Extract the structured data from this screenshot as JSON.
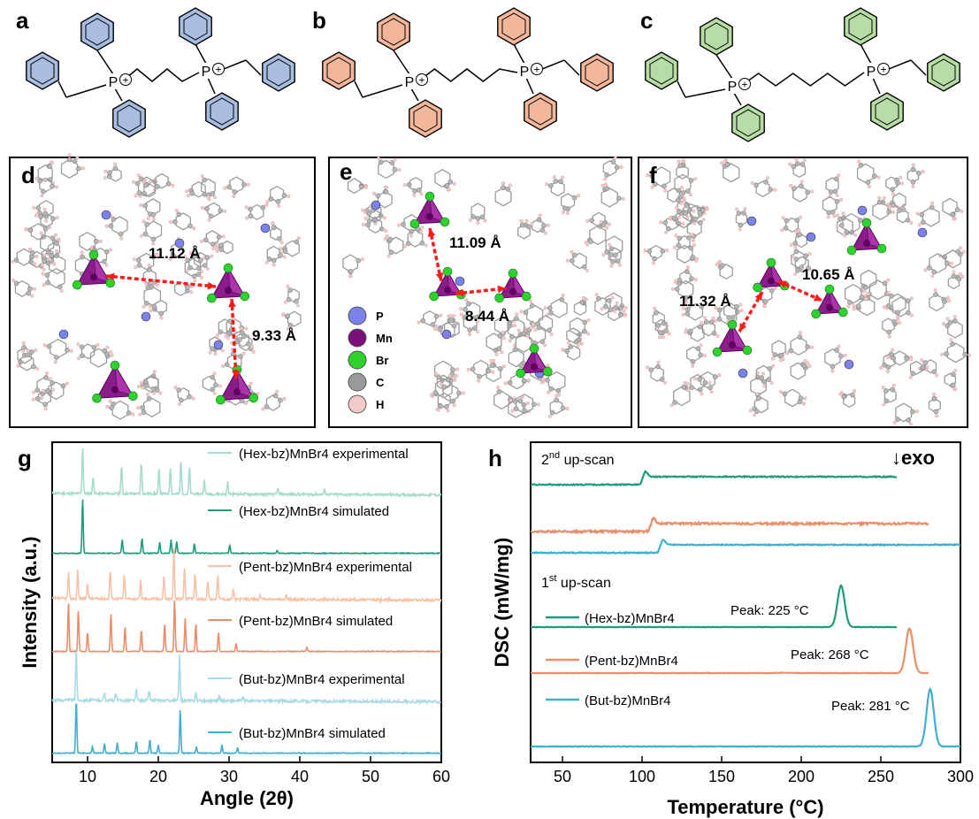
{
  "panels": {
    "a": "a",
    "b": "b",
    "c": "c",
    "d": "d",
    "e": "e",
    "f": "f",
    "g": "g",
    "h": "h"
  },
  "molecule_colors": {
    "a": "#a9bde0",
    "b": "#f2b79a",
    "c": "#b7dca6"
  },
  "phosphonium_label": "P",
  "plus_sign": "+",
  "crystal": {
    "d": {
      "distances": [
        "11.12 Å",
        "9.33 Å"
      ]
    },
    "e": {
      "distances": [
        "11.09 Å",
        "8.44 Å"
      ]
    },
    "f": {
      "distances": [
        "10.65 Å",
        "11.32 Å"
      ]
    },
    "legend": [
      {
        "label": "P",
        "color": "#7b82e8"
      },
      {
        "label": "Mn",
        "color": "#7d0f7b"
      },
      {
        "label": "Br",
        "color": "#2ed12e"
      },
      {
        "label": "C",
        "color": "#9a9a9a"
      },
      {
        "label": "H",
        "color": "#f3c9c9"
      }
    ]
  },
  "chart_data": [
    {
      "panel": "g",
      "type": "line",
      "xlabel": "Angle (2θ)",
      "ylabel": "Intensity (a.u.)",
      "xlim": [
        5,
        60
      ],
      "xticks": [
        10,
        20,
        30,
        40,
        50,
        60
      ],
      "series": [
        {
          "name": "(Hex-bz)MnBr4 experimental",
          "color": "#a6dcc9",
          "peaks": [
            [
              9.3,
              0.95
            ],
            [
              10.8,
              0.35
            ],
            [
              14.8,
              0.55
            ],
            [
              17.6,
              0.65
            ],
            [
              20.1,
              0.5
            ],
            [
              21.7,
              0.55
            ],
            [
              23.2,
              0.7
            ],
            [
              24.4,
              0.55
            ],
            [
              26.5,
              0.3
            ],
            [
              29.8,
              0.25
            ],
            [
              36.9,
              0.12
            ],
            [
              43.5,
              0.1
            ]
          ]
        },
        {
          "name": "(Hex-bz)MnBr4 simulated",
          "color": "#1e9c7c",
          "peaks": [
            [
              9.3,
              1.0
            ],
            [
              14.9,
              0.25
            ],
            [
              17.7,
              0.28
            ],
            [
              20.2,
              0.2
            ],
            [
              21.8,
              0.25
            ],
            [
              22.6,
              0.22
            ],
            [
              25.1,
              0.18
            ],
            [
              30.1,
              0.15
            ],
            [
              36.8,
              0.05
            ]
          ]
        },
        {
          "name": "(Pent-bz)MnBr4 experimental",
          "color": "#f6c3aa",
          "peaks": [
            [
              7.3,
              0.5
            ],
            [
              8.6,
              0.55
            ],
            [
              10.0,
              0.3
            ],
            [
              13.2,
              0.55
            ],
            [
              15.2,
              0.45
            ],
            [
              17.5,
              0.35
            ],
            [
              20.8,
              0.45
            ],
            [
              22.2,
              0.95
            ],
            [
              23.7,
              0.6
            ],
            [
              25.2,
              0.5
            ],
            [
              27.0,
              0.35
            ],
            [
              28.4,
              0.45
            ],
            [
              30.6,
              0.2
            ],
            [
              34.4,
              0.1
            ],
            [
              38.1,
              0.08
            ]
          ]
        },
        {
          "name": "(Pent-bz)MnBr4 simulated",
          "color": "#ea8e69",
          "peaks": [
            [
              7.3,
              0.9
            ],
            [
              8.7,
              0.75
            ],
            [
              10.0,
              0.35
            ],
            [
              13.3,
              0.7
            ],
            [
              15.3,
              0.45
            ],
            [
              17.6,
              0.4
            ],
            [
              20.9,
              0.5
            ],
            [
              22.3,
              0.95
            ],
            [
              23.8,
              0.6
            ],
            [
              25.3,
              0.5
            ],
            [
              28.5,
              0.35
            ],
            [
              31.0,
              0.15
            ],
            [
              41.0,
              0.08
            ]
          ]
        },
        {
          "name": "(But-bz)MnBr4 experimental",
          "color": "#a9dae8",
          "peaks": [
            [
              8.4,
              0.95
            ],
            [
              12.4,
              0.15
            ],
            [
              14.0,
              0.12
            ],
            [
              16.9,
              0.2
            ],
            [
              18.7,
              0.18
            ],
            [
              23.0,
              0.85
            ],
            [
              25.3,
              0.15
            ],
            [
              28.6,
              0.1
            ],
            [
              32.0,
              0.08
            ]
          ]
        },
        {
          "name": "(But-bz)MnBr4 simulated",
          "color": "#3fb1cc",
          "peaks": [
            [
              8.4,
              1.0
            ],
            [
              10.7,
              0.12
            ],
            [
              12.4,
              0.18
            ],
            [
              14.2,
              0.2
            ],
            [
              16.9,
              0.22
            ],
            [
              18.8,
              0.25
            ],
            [
              20.0,
              0.15
            ],
            [
              23.1,
              0.8
            ],
            [
              25.4,
              0.12
            ],
            [
              29.0,
              0.15
            ],
            [
              31.2,
              0.1
            ]
          ]
        }
      ]
    },
    {
      "panel": "h",
      "type": "line",
      "xlabel": "Temperature (°C)",
      "ylabel": "DSC (mW/mg)",
      "xlim": [
        30,
        300
      ],
      "xticks": [
        50,
        100,
        150,
        200,
        250,
        300
      ],
      "annotations": {
        "second_scan_base": "2",
        "second_scan_sup": "nd",
        "second_scan_rest": " up-scan",
        "first_scan_base": "1",
        "first_scan_sup": "st",
        "first_scan_rest": " up-scan",
        "exo": "↓exo"
      },
      "series": [
        {
          "name": "(Hex-bz)MnBr4",
          "scan": "2nd",
          "color": "#1e9c7c",
          "x_end": 260,
          "step": [
            102,
            -10
          ]
        },
        {
          "name": "(Pent-bz)MnBr4",
          "scan": "2nd",
          "color": "#ea8e69",
          "x_end": 280,
          "step": [
            107,
            -10
          ]
        },
        {
          "name": "(But-bz)MnBr4",
          "scan": "2nd",
          "color": "#3fb1cc",
          "x_end": 300,
          "step": [
            113,
            -10
          ]
        },
        {
          "name": "(Hex-bz)MnBr4",
          "scan": "1st",
          "color": "#1e9c7c",
          "x_end": 260,
          "peak": 225,
          "peak_label": "Peak: 225 °C"
        },
        {
          "name": "(Pent-bz)MnBr4",
          "scan": "1st",
          "color": "#ea8e69",
          "x_end": 280,
          "peak": 268,
          "peak_label": "Peak: 268 °C"
        },
        {
          "name": "(But-bz)MnBr4",
          "scan": "1st",
          "color": "#3fb1cc",
          "x_end": 300,
          "peak": 281,
          "peak_label": "Peak: 281 °C"
        }
      ]
    }
  ]
}
